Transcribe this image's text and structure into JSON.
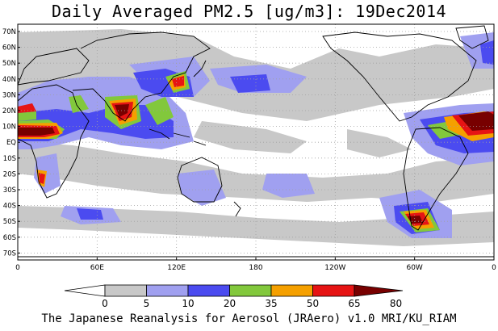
{
  "title": "Daily Averaged PM2.5 [ug/m3]: 19Dec2014",
  "footer": "The Japanese Reanalysis for Aerosol (JRAero) v1.0 MRI/KU_RIAM",
  "map": {
    "lat_labels": [
      "70N",
      "60N",
      "50N",
      "40N",
      "30N",
      "20N",
      "10N",
      "EQ",
      "10S",
      "20S",
      "30S",
      "40S",
      "50S",
      "60S",
      "70S"
    ],
    "lon_labels": [
      "0",
      "60E",
      "120E",
      "180",
      "120W",
      "60W",
      "0"
    ]
  },
  "colorbar": {
    "levels": [
      "0",
      "5",
      "10",
      "20",
      "35",
      "50",
      "65",
      "80"
    ],
    "colors": [
      "#ffffff",
      "#c8c8c8",
      "#a0a0f0",
      "#4b4bf0",
      "#82c83c",
      "#f5a000",
      "#e61414",
      "#780000"
    ]
  }
}
